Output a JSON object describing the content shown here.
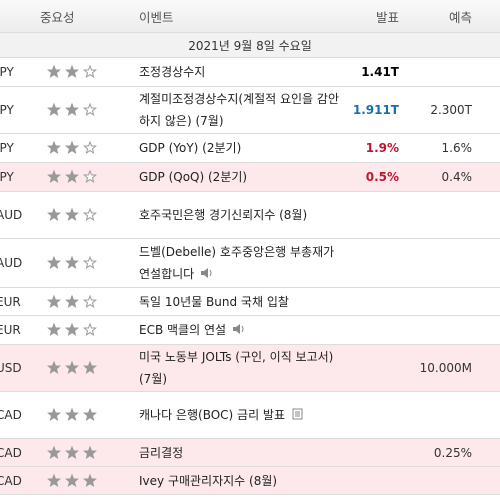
{
  "header": {
    "importance": "중요성",
    "event": "이벤트",
    "actual": "발표",
    "forecast": "예측"
  },
  "date": "2021년 9월 8일 수요일",
  "rows": [
    {
      "currency": "JPY",
      "importance": 2,
      "event": "조정경상수지",
      "actual": "1.41T",
      "actual_color": "#000000",
      "forecast": null,
      "highlight": false
    },
    {
      "currency": "JPY",
      "importance": 2,
      "event": "계절미조정경상수지(계절적 요인을 감안하지 않은) (7월)",
      "actual": "1.911T",
      "actual_color": "#1a6fa8",
      "forecast": "2.300T",
      "highlight": false
    },
    {
      "currency": "JPY",
      "importance": 2,
      "event": "GDP (YoY) (2분기)",
      "actual": "1.9%",
      "actual_color": "#c0172b",
      "forecast": "1.6%",
      "highlight": false
    },
    {
      "currency": "JPY",
      "importance": 2,
      "event": "GDP (QoQ) (2분기)",
      "actual": "0.5%",
      "actual_color": "#c0172b",
      "forecast": "0.4%",
      "highlight": true
    },
    {
      "currency": "AUD",
      "importance": 2,
      "event": "호주국민은행 경기신뢰지수 (8월)",
      "actual": null,
      "forecast": null,
      "highlight": false
    },
    {
      "currency": "AUD",
      "importance": 2,
      "event": "드벨(Debelle) 호주중앙은행 부총재가 연설합니다",
      "icon": "speaker",
      "actual": null,
      "forecast": null,
      "highlight": false
    },
    {
      "currency": "EUR",
      "importance": 2,
      "event": "독일 10년물 Bund 국채 입찰",
      "actual": null,
      "forecast": null,
      "highlight": false
    },
    {
      "currency": "EUR",
      "importance": 2,
      "event": "ECB 맥클의 연설",
      "icon": "speaker",
      "actual": null,
      "forecast": null,
      "highlight": false
    },
    {
      "currency": "USD",
      "importance": 3,
      "event": "미국 노동부 JOLTs (구인, 이직 보고서) (7월)",
      "actual": null,
      "forecast": "10.000M",
      "highlight": true
    },
    {
      "currency": "CAD",
      "importance": 3,
      "event": "캐나다 은행(BOC) 금리 발표",
      "icon": "doc",
      "actual": null,
      "forecast": null,
      "highlight": false
    },
    {
      "currency": "CAD",
      "importance": 3,
      "event": "금리결정",
      "actual": null,
      "forecast": "0.25%",
      "highlight": true
    },
    {
      "currency": "CAD",
      "importance": 3,
      "event": "Ivey 구매관리자지수 (8월)",
      "actual": null,
      "forecast": null,
      "highlight": true
    }
  ]
}
